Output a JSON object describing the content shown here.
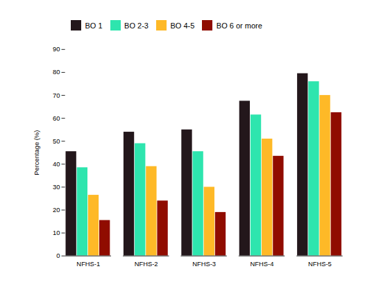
{
  "chart_data": {
    "type": "bar",
    "categories": [
      "NFHS-1",
      "NFHS-2",
      "NFHS-3",
      "NFHS-4",
      "NFHS-5"
    ],
    "series": [
      {
        "name": "BO 1",
        "values": [
          45.5,
          54.0,
          55.0,
          67.5,
          79.5
        ]
      },
      {
        "name": "BO 2-3",
        "values": [
          38.5,
          49.0,
          45.5,
          61.5,
          76.0
        ]
      },
      {
        "name": "BO 4-5",
        "values": [
          26.5,
          39.0,
          30.0,
          51.0,
          70.0
        ]
      },
      {
        "name": "BO 6 or more",
        "values": [
          15.5,
          24.0,
          19.0,
          43.5,
          62.5
        ]
      }
    ],
    "ylabel": "Percentage (%)",
    "ylim": [
      0,
      90
    ],
    "yticks": [
      0,
      10,
      20,
      30,
      40,
      50,
      60,
      70,
      80,
      90
    ],
    "grid": false,
    "legend": "upper left"
  }
}
